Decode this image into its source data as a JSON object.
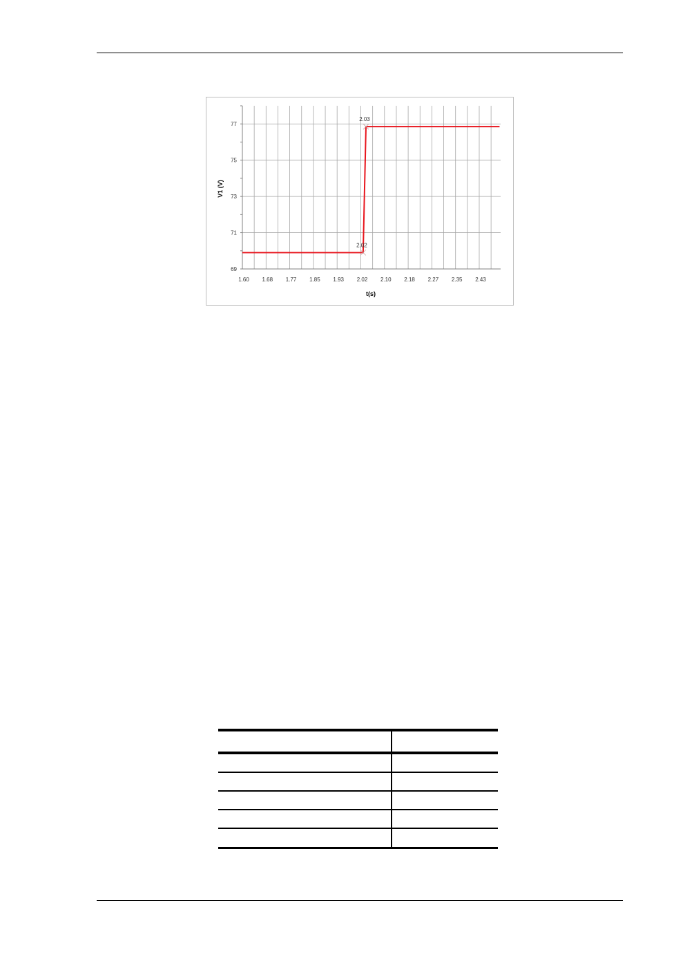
{
  "chart_data": {
    "type": "line",
    "xlabel": "t(s)",
    "ylabel": "V1 (V)",
    "x_tick_labels": [
      "1.60",
      "1.68",
      "1.77",
      "1.85",
      "1.93",
      "2.02",
      "2.10",
      "2.18",
      "2.27",
      "2.35",
      "2.43"
    ],
    "y_tick_labels": [
      "69",
      "71",
      "73",
      "75",
      "77"
    ],
    "xlim": [
      1.595,
      2.5
    ],
    "ylim": [
      69,
      78
    ],
    "grid": true,
    "series": [
      {
        "color": "#e8141c",
        "points": [
          [
            1.595,
            69.9
          ],
          [
            2.02,
            69.9
          ],
          [
            2.03,
            76.85
          ],
          [
            2.5,
            76.85
          ]
        ]
      }
    ],
    "annotations": [
      {
        "text": "2.02",
        "x": 2.02,
        "y": 69.9
      },
      {
        "text": "2.03",
        "x": 2.03,
        "y": 76.85
      }
    ]
  },
  "table": {
    "columns": 2,
    "rows": 5
  }
}
